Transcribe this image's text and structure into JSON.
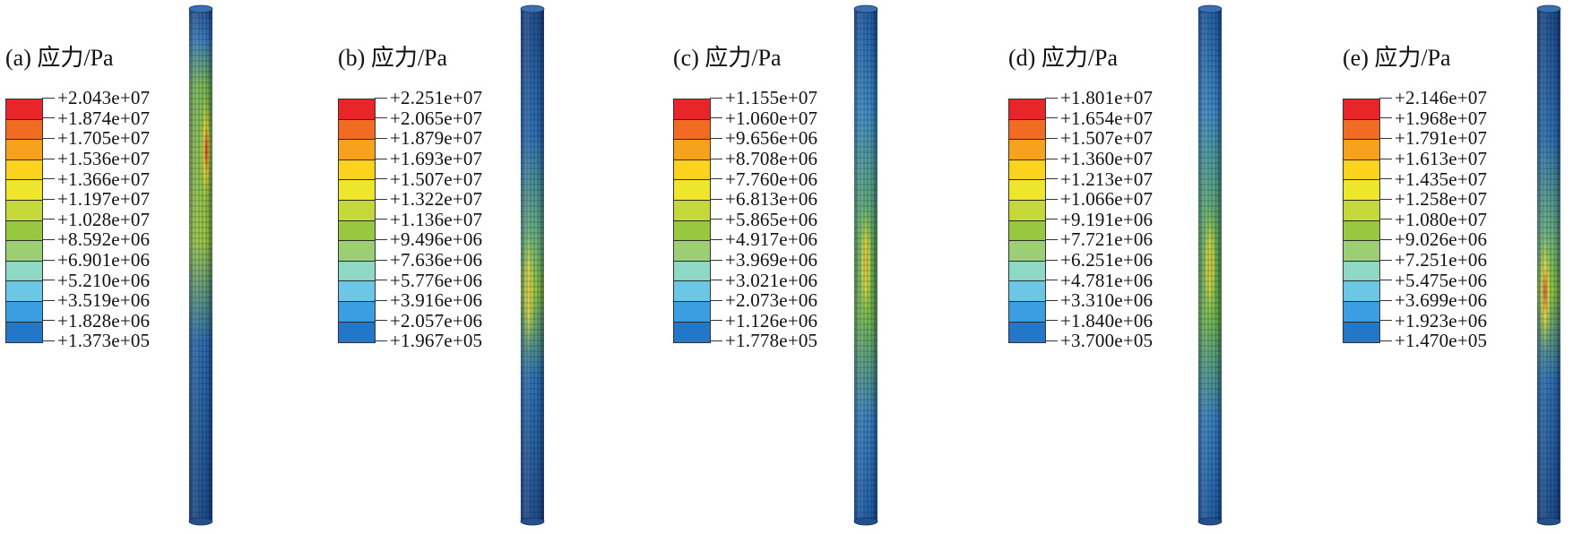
{
  "figure": {
    "panels": [
      {
        "title": "(a) 应力/Pa",
        "ticks": [
          "+2.043e+07",
          "+1.874e+07",
          "+1.705e+07",
          "+1.536e+07",
          "+1.366e+07",
          "+1.197e+07",
          "+1.028e+07",
          "+8.592e+06",
          "+6.901e+06",
          "+5.210e+06",
          "+3.519e+06",
          "+1.828e+06",
          "+1.373e+05"
        ],
        "column": {
          "hotspot": "upper-right",
          "hot_level": 0.92
        }
      },
      {
        "title": "(b) 应力/Pa",
        "ticks": [
          "+2.251e+07",
          "+2.065e+07",
          "+1.879e+07",
          "+1.693e+07",
          "+1.507e+07",
          "+1.322e+07",
          "+1.136e+07",
          "+9.496e+06",
          "+7.636e+06",
          "+5.776e+06",
          "+3.916e+06",
          "+2.057e+06",
          "+1.967e+05"
        ],
        "column": {
          "hotspot": "middle-left",
          "hot_level": 0.55
        }
      },
      {
        "title": "(c) 应力/Pa",
        "ticks": [
          "+1.155e+07",
          "+1.060e+07",
          "+9.656e+06",
          "+8.708e+06",
          "+7.760e+06",
          "+6.813e+06",
          "+5.865e+06",
          "+4.917e+06",
          "+3.969e+06",
          "+3.021e+06",
          "+2.073e+06",
          "+1.126e+06",
          "+1.778e+05"
        ],
        "column": {
          "hotspot": "middle",
          "hot_level": 0.75
        }
      },
      {
        "title": "(d) 应力/Pa",
        "ticks": [
          "+1.801e+07",
          "+1.654e+07",
          "+1.507e+07",
          "+1.360e+07",
          "+1.213e+07",
          "+1.066e+07",
          "+9.191e+06",
          "+7.721e+06",
          "+6.251e+06",
          "+4.781e+06",
          "+3.310e+06",
          "+1.840e+06",
          "+3.700e+05"
        ],
        "column": {
          "hotspot": "middle",
          "hot_level": 0.55
        }
      },
      {
        "title": "(e) 应力/Pa",
        "ticks": [
          "+2.146e+07",
          "+1.968e+07",
          "+1.791e+07",
          "+1.613e+07",
          "+1.435e+07",
          "+1.258e+07",
          "+1.080e+07",
          "+9.026e+06",
          "+7.251e+06",
          "+5.475e+06",
          "+3.699e+06",
          "+1.923e+06",
          "+1.470e+05"
        ],
        "column": {
          "hotspot": "middle-left",
          "hot_level": 0.95
        }
      }
    ],
    "colormap": [
      "#e8262a",
      "#f26b22",
      "#f7a21c",
      "#fbd21e",
      "#eee62a",
      "#c4d83a",
      "#97c83f",
      "#9ccf74",
      "#8ed8c6",
      "#6cc7e6",
      "#3a9ee0",
      "#2277c8"
    ]
  }
}
